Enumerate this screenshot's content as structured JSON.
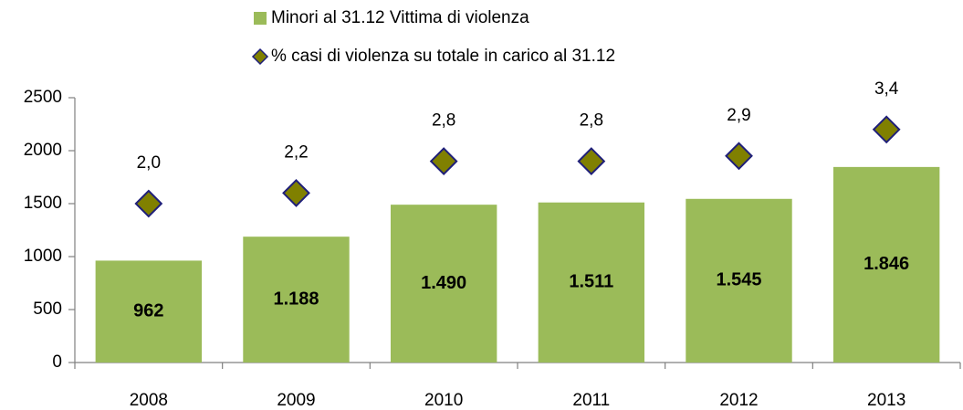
{
  "chart_data": {
    "type": "bar",
    "categories": [
      "2008",
      "2009",
      "2010",
      "2011",
      "2012",
      "2013"
    ],
    "series": [
      {
        "name": "Minori al 31.12 Vittima di violenza",
        "type": "bar",
        "color": "#9bbb59",
        "values": [
          962,
          1188,
          1490,
          1511,
          1545,
          1846
        ],
        "value_labels": [
          "962",
          "1.188",
          "1.490",
          "1.511",
          "1.545",
          "1.846"
        ]
      },
      {
        "name": "% casi di violenza su totale in carico al 31.12",
        "type": "scatter",
        "axis": "y2",
        "color": "#808000",
        "values": [
          2.0,
          2.2,
          2.8,
          2.8,
          2.9,
          3.4
        ],
        "value_labels": [
          "2,0",
          "2,2",
          "2,8",
          "2,8",
          "2,9",
          "3,4"
        ]
      }
    ],
    "ylim": [
      0,
      2500
    ],
    "yticks": [
      0,
      500,
      1000,
      1500,
      2000,
      2500
    ],
    "y2lim": [
      -1,
      4
    ]
  }
}
